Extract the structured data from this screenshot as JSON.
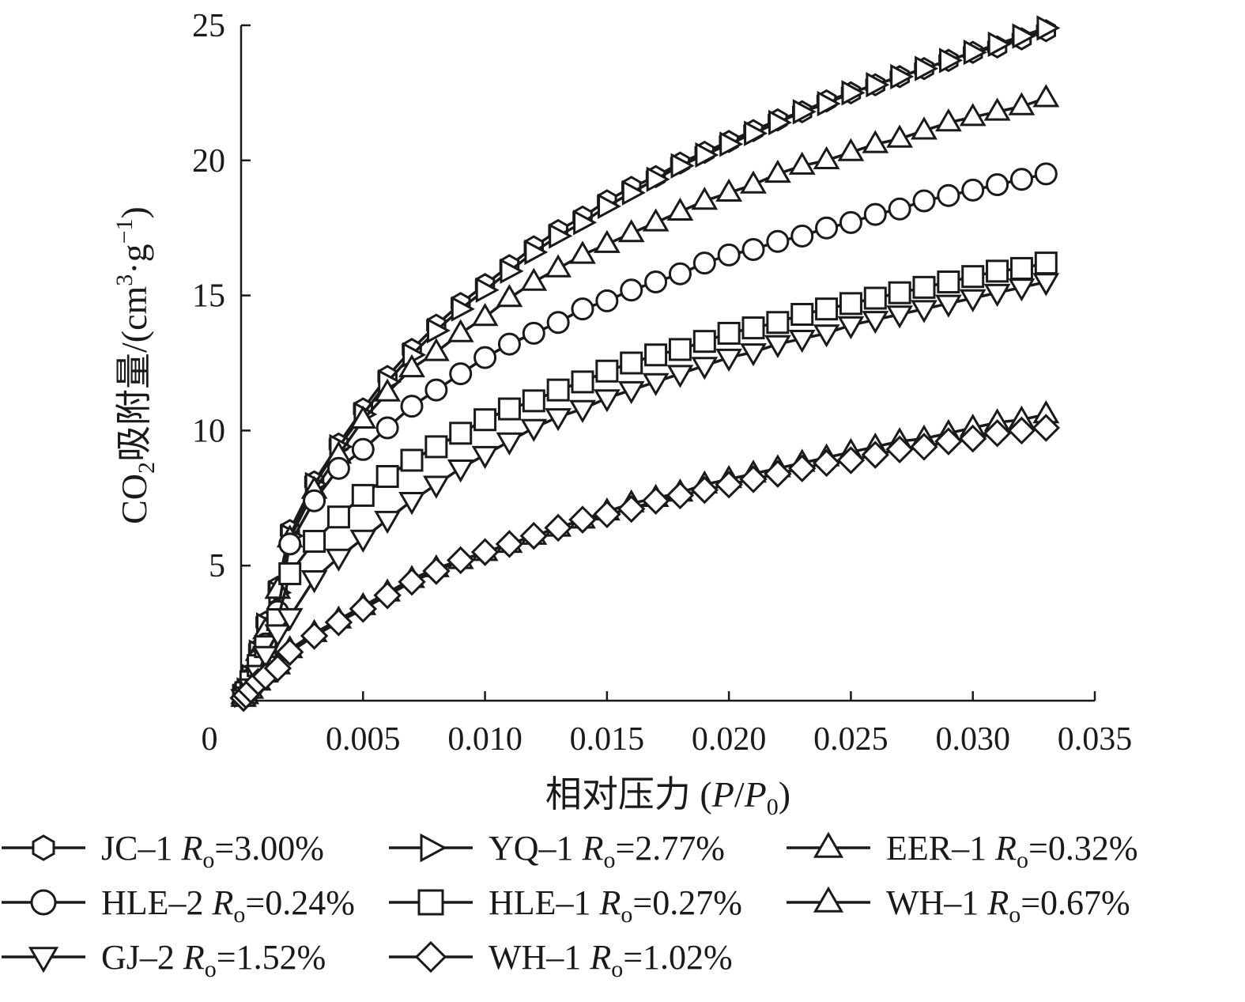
{
  "chart_data": {
    "type": "line",
    "title": "",
    "xlabel": "相对压力 (P/P0)",
    "xlabel_parts": [
      "相对压力 (",
      "P",
      "/",
      "P",
      "0",
      ")"
    ],
    "ylabel": "CO2吸附量/(cm3·g−1)",
    "ylabel_parts": [
      "CO",
      "2",
      "吸附量/(cm",
      "3",
      "·",
      "g",
      "−1",
      ")"
    ],
    "xlim": [
      0,
      0.035
    ],
    "ylim": [
      0,
      25
    ],
    "x_ticks": [
      {
        "value": 0,
        "label": "0"
      },
      {
        "value": 0.005,
        "label": "0.005"
      },
      {
        "value": 0.01,
        "label": "0.010"
      },
      {
        "value": 0.015,
        "label": "0.015"
      },
      {
        "value": 0.02,
        "label": "0.020"
      },
      {
        "value": 0.025,
        "label": "0.025"
      },
      {
        "value": 0.03,
        "label": "0.030"
      },
      {
        "value": 0.035,
        "label": "0.035"
      }
    ],
    "y_ticks": [
      {
        "value": 5,
        "label": "5"
      },
      {
        "value": 10,
        "label": "10"
      },
      {
        "value": 15,
        "label": "15"
      },
      {
        "value": 20,
        "label": "20"
      },
      {
        "value": 25,
        "label": "25"
      }
    ],
    "grid": false,
    "legend_position": "bottom",
    "x": [
      0.0001,
      0.0002,
      0.0004,
      0.0007,
      0.001,
      0.0015,
      0.002,
      0.003,
      0.004,
      0.005,
      0.006,
      0.007,
      0.008,
      0.009,
      0.01,
      0.011,
      0.012,
      0.013,
      0.014,
      0.015,
      0.016,
      0.017,
      0.018,
      0.019,
      0.02,
      0.021,
      0.022,
      0.023,
      0.024,
      0.025,
      0.026,
      0.027,
      0.028,
      0.029,
      0.03,
      0.031,
      0.032,
      0.033
    ],
    "series": [
      {
        "name": "JC–1",
        "ro": "3.00%",
        "marker": "hexagon",
        "values": [
          0.2,
          0.4,
          0.9,
          1.9,
          2.9,
          4.2,
          6.3,
          8.1,
          9.5,
          10.8,
          12.0,
          13.0,
          13.9,
          14.7,
          15.4,
          16.1,
          16.8,
          17.4,
          17.9,
          18.5,
          19.0,
          19.4,
          19.9,
          20.3,
          20.7,
          21.1,
          21.5,
          21.8,
          22.2,
          22.5,
          22.8,
          23.1,
          23.4,
          23.7,
          24.0,
          24.2,
          24.5,
          24.8
        ]
      },
      {
        "name": "YQ–1",
        "ro": "2.77%",
        "marker": "triangle-right",
        "values": [
          0.2,
          0.4,
          0.9,
          1.8,
          2.8,
          4.0,
          6.1,
          8.0,
          9.4,
          10.6,
          11.8,
          12.8,
          13.7,
          14.5,
          15.2,
          15.9,
          16.6,
          17.2,
          17.7,
          18.3,
          18.8,
          19.3,
          19.8,
          20.2,
          20.6,
          21.0,
          21.4,
          21.8,
          22.1,
          22.5,
          22.8,
          23.1,
          23.4,
          23.7,
          24.0,
          24.3,
          24.6,
          24.9
        ]
      },
      {
        "name": "EER–1",
        "ro": "0.32%",
        "marker": "triangle-up",
        "values": [
          0.2,
          0.4,
          0.9,
          1.8,
          2.6,
          4.1,
          6.0,
          7.8,
          9.1,
          10.4,
          11.4,
          12.3,
          12.9,
          13.6,
          14.2,
          14.9,
          15.5,
          16.0,
          16.5,
          16.9,
          17.3,
          17.7,
          18.1,
          18.5,
          18.8,
          19.1,
          19.5,
          19.8,
          20.0,
          20.3,
          20.6,
          20.8,
          21.1,
          21.4,
          21.6,
          21.8,
          22.0,
          22.3
        ]
      },
      {
        "name": "HLE–2",
        "ro": "0.24%",
        "marker": "circle",
        "values": [
          0.2,
          0.4,
          0.8,
          1.5,
          2.1,
          3.3,
          5.8,
          7.4,
          8.6,
          9.3,
          10.1,
          10.9,
          11.5,
          12.1,
          12.7,
          13.2,
          13.6,
          14.0,
          14.5,
          14.8,
          15.2,
          15.5,
          15.8,
          16.2,
          16.5,
          16.7,
          17.0,
          17.2,
          17.5,
          17.7,
          18.0,
          18.2,
          18.5,
          18.7,
          18.9,
          19.1,
          19.3,
          19.5
        ]
      },
      {
        "name": "HLE–1",
        "ro": "0.27%",
        "marker": "square",
        "values": [
          0.2,
          0.3,
          0.7,
          1.3,
          2.0,
          3.0,
          4.7,
          5.9,
          6.8,
          7.6,
          8.3,
          8.9,
          9.4,
          9.9,
          10.4,
          10.8,
          11.1,
          11.5,
          11.8,
          12.2,
          12.5,
          12.8,
          13.0,
          13.3,
          13.6,
          13.8,
          14.0,
          14.3,
          14.5,
          14.7,
          14.9,
          15.1,
          15.3,
          15.5,
          15.7,
          15.9,
          16.0,
          16.2
        ]
      },
      {
        "name": "WH–1",
        "ro": "0.67%",
        "marker": "triangle-up",
        "values": [
          0.1,
          0.2,
          0.4,
          0.7,
          1.0,
          1.3,
          1.9,
          2.5,
          3.0,
          3.5,
          4.0,
          4.5,
          4.9,
          5.2,
          5.5,
          5.8,
          6.1,
          6.4,
          6.7,
          7.0,
          7.3,
          7.5,
          7.7,
          8.0,
          8.2,
          8.4,
          8.6,
          8.8,
          9.0,
          9.2,
          9.4,
          9.6,
          9.7,
          9.9,
          10.1,
          10.3,
          10.4,
          10.6
        ]
      },
      {
        "name": "GJ–2",
        "ro": "1.52%",
        "marker": "triangle-down",
        "values": [
          0.1,
          0.2,
          0.5,
          1.0,
          1.7,
          2.5,
          3.1,
          4.5,
          5.3,
          6.0,
          6.7,
          7.4,
          8.0,
          8.6,
          9.1,
          9.6,
          10.1,
          10.5,
          10.8,
          11.2,
          11.5,
          11.8,
          12.1,
          12.4,
          12.7,
          12.9,
          13.2,
          13.4,
          13.6,
          13.9,
          14.1,
          14.3,
          14.5,
          14.7,
          14.9,
          15.1,
          15.3,
          15.5
        ]
      },
      {
        "name": "WH–1",
        "ro": "1.02%",
        "marker": "diamond",
        "values": [
          0.1,
          0.2,
          0.4,
          0.7,
          0.9,
          1.2,
          1.8,
          2.4,
          2.9,
          3.4,
          3.9,
          4.4,
          4.8,
          5.2,
          5.5,
          5.8,
          6.1,
          6.4,
          6.7,
          6.9,
          7.1,
          7.4,
          7.6,
          7.8,
          8.0,
          8.2,
          8.4,
          8.6,
          8.8,
          8.9,
          9.1,
          9.3,
          9.4,
          9.6,
          9.7,
          9.9,
          10.0,
          10.1
        ]
      }
    ],
    "legend": [
      {
        "label": "JC–1",
        "sym": "R",
        "sub": "o",
        "value": "=3.00%"
      },
      {
        "label": "YQ–1",
        "sym": "R",
        "sub": "o",
        "value": "=2.77%"
      },
      {
        "label": "EER–1",
        "sym": "R",
        "sub": "o",
        "value": "=0.32%"
      },
      {
        "label": "HLE–2",
        "sym": "R",
        "sub": "o",
        "value": "=0.24%"
      },
      {
        "label": "HLE–1",
        "sym": "R",
        "sub": "o",
        "value": "=0.27%"
      },
      {
        "label": "WH–1",
        "sym": "R",
        "sub": "o",
        "value": "=0.67%"
      },
      {
        "label": "GJ–2",
        "sym": "R",
        "sub": "o",
        "value": "=1.52%"
      },
      {
        "label": "WH–1",
        "sym": "R",
        "sub": "o",
        "value": "=1.02%"
      }
    ]
  }
}
